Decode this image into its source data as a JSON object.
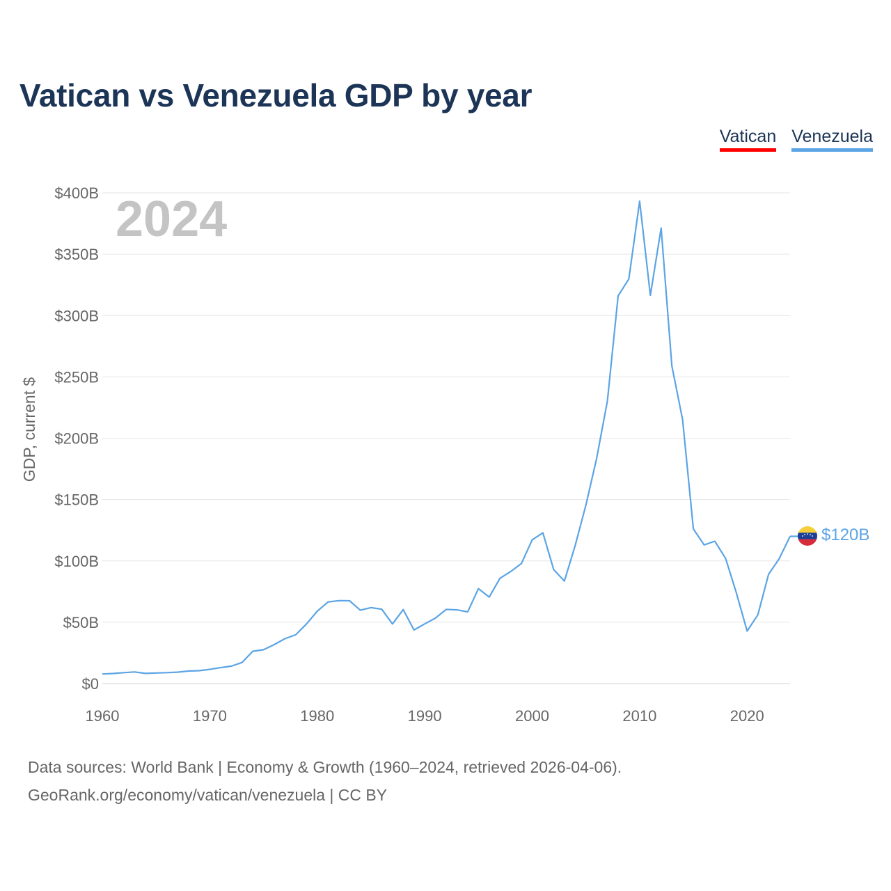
{
  "title": "Vatican vs Venezuela GDP by year",
  "legend": [
    {
      "label": "Vatican",
      "color": "#ff0000"
    },
    {
      "label": "Venezuela",
      "color": "#5ba4e5"
    }
  ],
  "year_label": "2024",
  "end_label": "$120B",
  "flag_icon": "venezuela-flag-icon",
  "source_lines": [
    "Data sources: World Bank | Economy & Growth (1960–2024, retrieved 2026-04-06).",
    "GeoRank.org/economy/vatican/venezuela | CC BY"
  ],
  "chart_data": {
    "type": "line",
    "title": "Vatican vs Venezuela GDP by year",
    "xlabel": "",
    "ylabel": "GDP, current $",
    "xlim": [
      1960,
      2024
    ],
    "ylim": [
      0,
      400
    ],
    "y_unit": "billion USD",
    "x_ticks": [
      1960,
      1970,
      1980,
      1990,
      2000,
      2010,
      2020
    ],
    "y_ticks": [
      0,
      50,
      100,
      150,
      200,
      250,
      300,
      350,
      400
    ],
    "y_tick_labels": [
      "$0",
      "$50B",
      "$100B",
      "$150B",
      "$200B",
      "$250B",
      "$300B",
      "$350B",
      "$400B"
    ],
    "grid": true,
    "legend_position": "top-right",
    "series": [
      {
        "name": "Vatican",
        "color": "#ff0000",
        "x": [],
        "values": []
      },
      {
        "name": "Venezuela",
        "color": "#5ba4e5",
        "x": [
          1960,
          1961,
          1962,
          1963,
          1964,
          1965,
          1966,
          1967,
          1968,
          1969,
          1970,
          1971,
          1972,
          1973,
          1974,
          1975,
          1976,
          1977,
          1978,
          1979,
          1980,
          1981,
          1982,
          1983,
          1984,
          1985,
          1986,
          1987,
          1988,
          1989,
          1990,
          1991,
          1992,
          1993,
          1994,
          1995,
          1996,
          1997,
          1998,
          1999,
          2000,
          2001,
          2002,
          2003,
          2004,
          2005,
          2006,
          2007,
          2008,
          2009,
          2010,
          2011,
          2012,
          2013,
          2014,
          2015,
          2016,
          2017,
          2018,
          2019,
          2020,
          2021,
          2022,
          2023,
          2024
        ],
        "values": [
          7.8,
          8.2,
          8.9,
          9.5,
          8.3,
          8.6,
          8.9,
          9.3,
          10.2,
          10.5,
          11.6,
          13.0,
          14.2,
          17.2,
          26.3,
          27.6,
          31.8,
          36.6,
          39.8,
          48.6,
          59.0,
          66.5,
          67.6,
          67.5,
          59.8,
          61.9,
          60.6,
          48.6,
          60.3,
          43.7,
          48.6,
          53.4,
          60.4,
          60.1,
          58.4,
          77.4,
          70.5,
          85.8,
          91.3,
          97.9,
          117.1,
          122.9,
          92.9,
          83.6,
          112.5,
          145.5,
          183.5,
          230.4,
          316.0,
          329.8,
          393.2,
          316.5,
          371.3,
          258.9,
          215.1,
          126.0,
          113.0,
          116.0,
          102.0,
          74.0,
          42.8,
          56.0,
          89.0,
          102.0,
          120.0
        ]
      }
    ]
  }
}
